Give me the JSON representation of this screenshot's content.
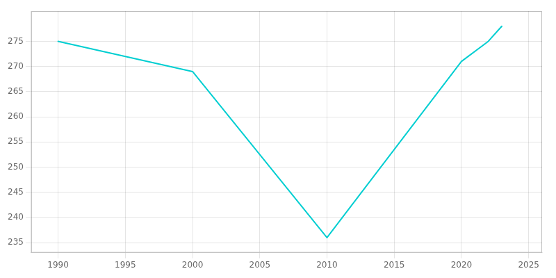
{
  "chart_data": {
    "type": "line",
    "x": [
      1990,
      2000,
      2010,
      2020,
      2022,
      2023
    ],
    "values": [
      275,
      269,
      236,
      271,
      275,
      278
    ],
    "color": "#00CED1",
    "xlim": [
      1988,
      2026
    ],
    "ylim": [
      233,
      281
    ],
    "xticks": [
      1990,
      1995,
      2000,
      2005,
      2010,
      2015,
      2020,
      2025
    ],
    "yticks": [
      235,
      240,
      245,
      250,
      255,
      260,
      265,
      270,
      275
    ],
    "grid": true
  }
}
